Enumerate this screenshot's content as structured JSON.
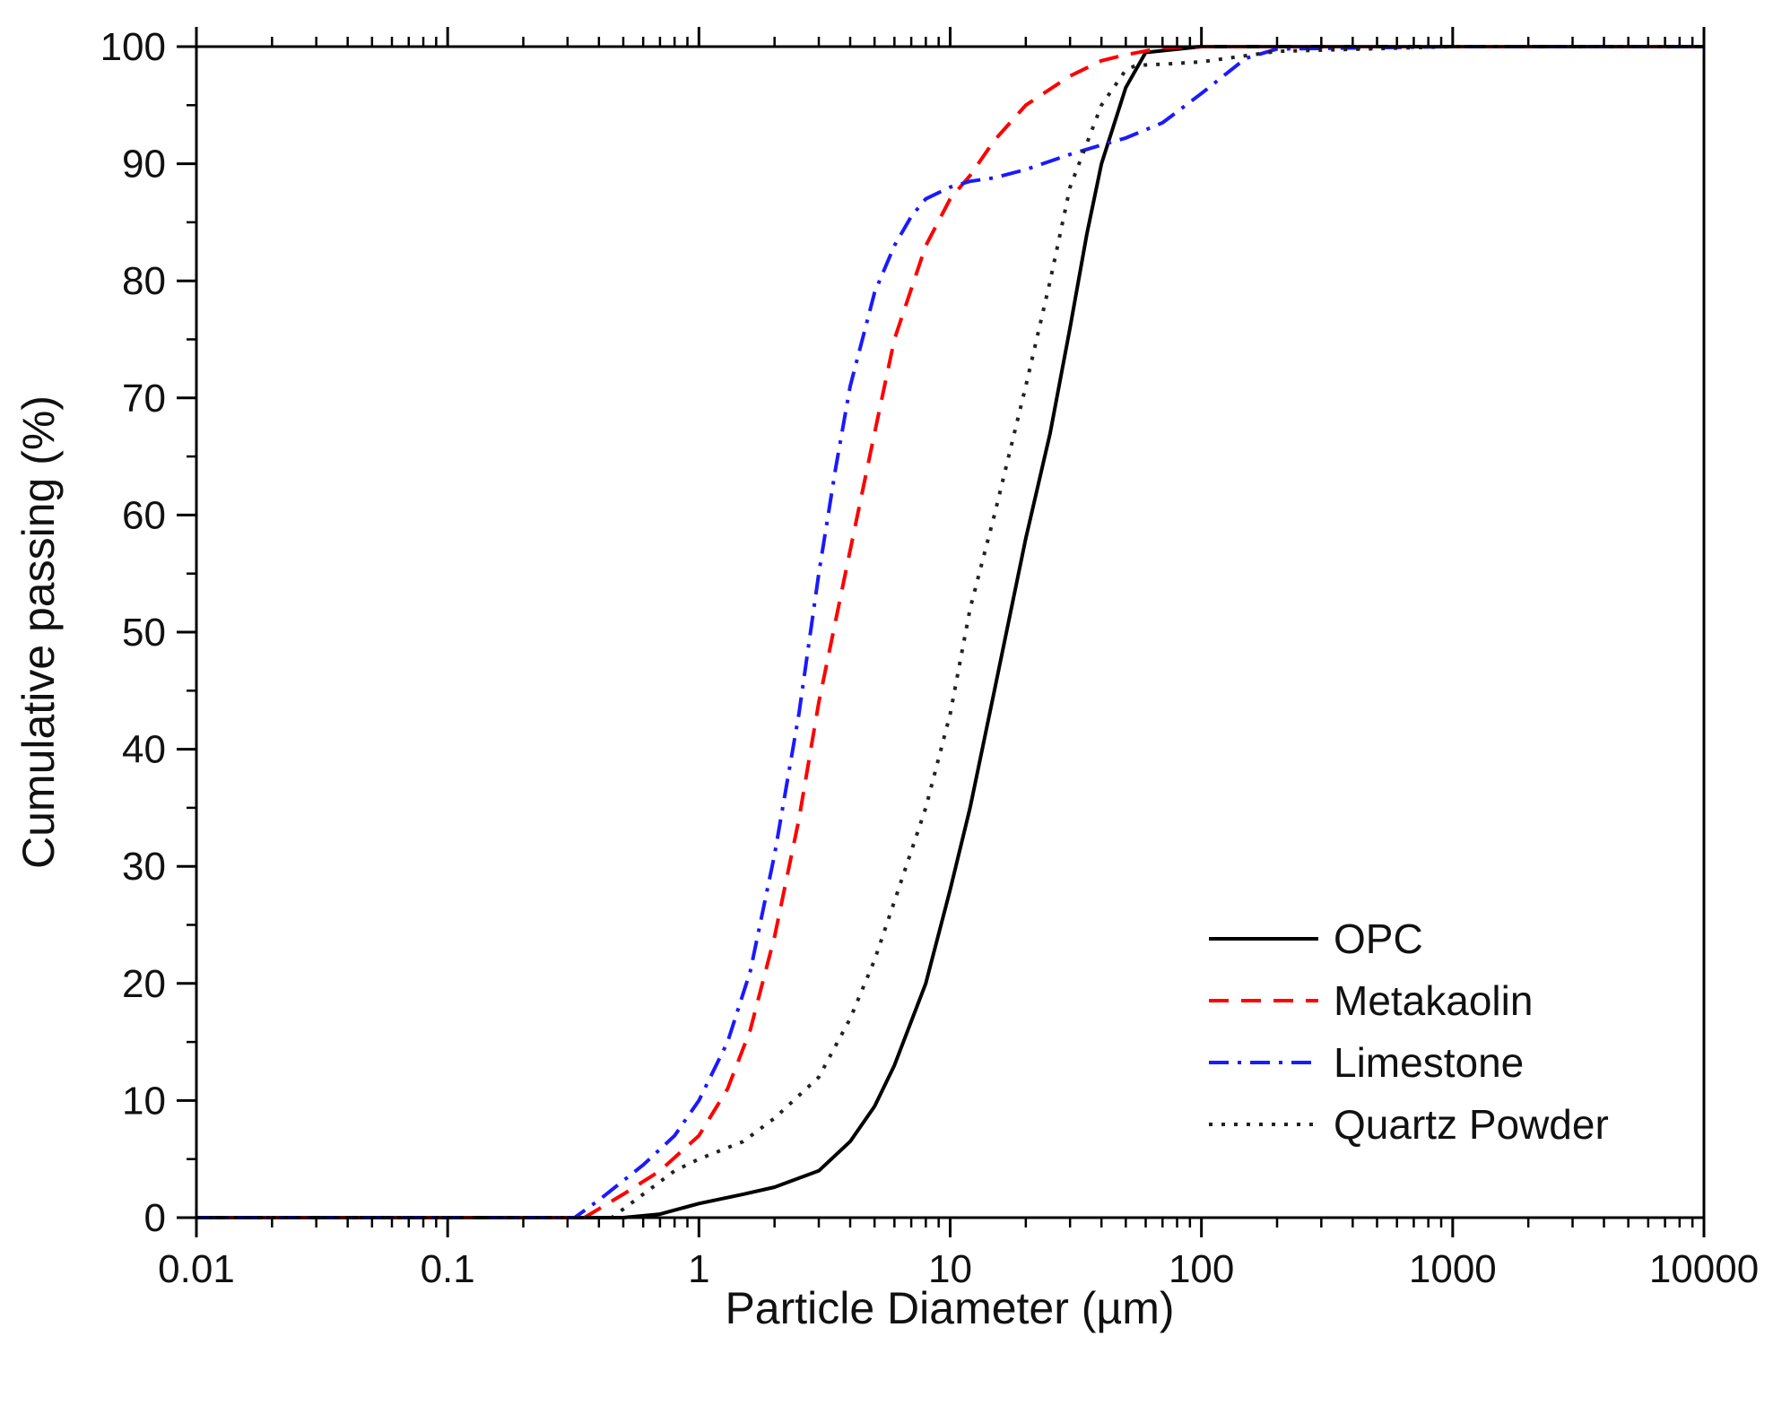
{
  "chart_data": {
    "type": "line",
    "title": "",
    "xlabel": "Particle Diameter (µm)",
    "ylabel": "Cumulative passing (%)",
    "xscale": "log",
    "xlim": [
      0.01,
      10000
    ],
    "ylim": [
      0,
      100
    ],
    "x_ticks": [
      0.01,
      0.1,
      1,
      10,
      100,
      1000,
      10000
    ],
    "x_tick_labels": [
      "0.01",
      "0.1",
      "1",
      "10",
      "100",
      "1000",
      "10000"
    ],
    "y_ticks": [
      0,
      10,
      20,
      30,
      40,
      50,
      60,
      70,
      80,
      90,
      100
    ],
    "y_tick_labels": [
      "0",
      "10",
      "20",
      "30",
      "40",
      "50",
      "60",
      "70",
      "80",
      "90",
      "100"
    ],
    "grid": false,
    "legend_position": "bottom-right",
    "series": [
      {
        "name": "OPC",
        "color": "#000000",
        "style": "solid",
        "x": [
          0.01,
          0.1,
          0.5,
          0.7,
          1.0,
          1.5,
          2.0,
          3.0,
          4.0,
          5.0,
          6.0,
          8.0,
          10.0,
          12.0,
          15.0,
          20.0,
          25.0,
          30.0,
          35.0,
          40.0,
          50.0,
          60.0,
          100.0,
          1000.0,
          10000.0
        ],
        "y": [
          0,
          0,
          0,
          0.3,
          1.2,
          2.0,
          2.6,
          4.0,
          6.5,
          9.5,
          13.0,
          20.0,
          28.0,
          35.0,
          45.0,
          58.0,
          67.0,
          76.0,
          84.0,
          90.0,
          96.5,
          99.5,
          100,
          100,
          100
        ]
      },
      {
        "name": "Metakaolin",
        "color": "#ff0000",
        "style": "dashed",
        "x": [
          0.01,
          0.1,
          0.35,
          0.5,
          0.7,
          1.0,
          1.3,
          1.6,
          2.0,
          2.5,
          3.0,
          4.0,
          5.0,
          6.0,
          8.0,
          10.0,
          12.0,
          15.0,
          20.0,
          30.0,
          40.0,
          50.0,
          70.0,
          100.0,
          1000.0,
          3000.0,
          10000.0
        ],
        "y": [
          0,
          0,
          0,
          2.0,
          4.0,
          7.0,
          11.0,
          16.0,
          24.0,
          34.0,
          44.0,
          57.0,
          67.0,
          75.0,
          83.0,
          87.0,
          89.0,
          92.0,
          95.0,
          97.5,
          98.8,
          99.3,
          99.9,
          100,
          100,
          100,
          100
        ]
      },
      {
        "name": "Limestone",
        "color": "#1a1aff",
        "style": "dashdot",
        "x": [
          0.01,
          0.1,
          0.32,
          0.4,
          0.6,
          0.8,
          1.0,
          1.3,
          1.6,
          2.0,
          2.5,
          3.0,
          3.5,
          4.0,
          5.0,
          6.0,
          7.0,
          8.0,
          10.0,
          12.0,
          15.0,
          20.0,
          30.0,
          40.0,
          50.0,
          70.0,
          100.0,
          150.0,
          200.0,
          1000.0,
          10000.0
        ],
        "y": [
          0,
          0,
          0,
          1.5,
          4.5,
          7.0,
          10.0,
          15.0,
          21.0,
          31.0,
          43.0,
          55.0,
          64.0,
          71.0,
          79.0,
          83.0,
          85.5,
          87.0,
          88.0,
          88.5,
          88.8,
          89.5,
          90.8,
          91.6,
          92.2,
          93.5,
          96.0,
          99.0,
          99.8,
          100,
          100
        ]
      },
      {
        "name": "Quartz Powder",
        "color": "#222222",
        "style": "dotted",
        "x": [
          0.01,
          0.1,
          0.45,
          0.6,
          0.8,
          1.0,
          1.5,
          2.0,
          3.0,
          4.0,
          5.0,
          6.0,
          8.0,
          10.0,
          12.0,
          15.0,
          20.0,
          25.0,
          30.0,
          40.0,
          50.0,
          55.0,
          70.0,
          100.0,
          200.0,
          1000.0,
          10000.0
        ],
        "y": [
          0,
          0,
          0,
          2.0,
          4.0,
          5.0,
          6.5,
          8.5,
          12.0,
          17.0,
          22.0,
          27.0,
          35.0,
          43.0,
          52.0,
          60.0,
          71.0,
          80.0,
          88.0,
          95.0,
          98.0,
          98.4,
          98.5,
          98.7,
          99.6,
          100,
          100
        ]
      }
    ]
  }
}
